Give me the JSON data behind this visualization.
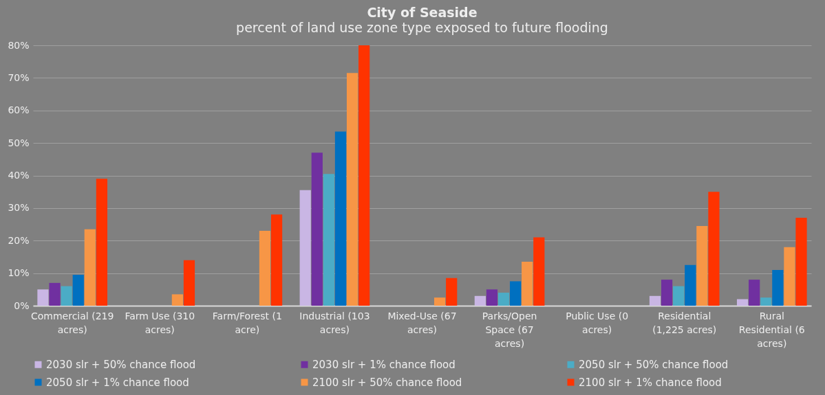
{
  "chart_data": {
    "type": "bar",
    "title": "City of Seaside",
    "subtitle": "percent of land use zone type exposed to future flooding",
    "categories": [
      "Commercial (219 acres)",
      "Farm Use (310 acres)",
      "Farm/Forest (1 acre)",
      "Industrial (103 acres)",
      "Mixed-Use (67 acres)",
      "Parks/Open Space (67 acres)",
      "Public Use (0 acres)",
      "Residential (1,225 acres)",
      "Rural Residential (6 acres)"
    ],
    "series": [
      {
        "name": "2030 slr + 50% chance flood",
        "color": "#c9b6e4",
        "values": [
          5,
          0,
          0,
          35.5,
          0,
          3,
          0,
          3,
          2
        ]
      },
      {
        "name": "2030 slr + 1% chance flood",
        "color": "#7030a0",
        "values": [
          7,
          0,
          0,
          47,
          0,
          5,
          0,
          8,
          8
        ]
      },
      {
        "name": "2050 slr + 50% chance flood",
        "color": "#4bacc6",
        "values": [
          6,
          0,
          0,
          40.5,
          0,
          4,
          0,
          6,
          2.5
        ]
      },
      {
        "name": "2050 slr + 1% chance flood",
        "color": "#0070c0",
        "values": [
          9.5,
          0,
          0,
          53.5,
          0,
          7.5,
          0,
          12.5,
          11
        ]
      },
      {
        "name": "2100 slr + 50% chance flood",
        "color": "#f79646",
        "values": [
          23.5,
          3.5,
          23,
          71.5,
          2.5,
          13.5,
          0,
          24.5,
          18
        ]
      },
      {
        "name": "2100 slr + 1% chance flood",
        "color": "#ff3300",
        "values": [
          39,
          14,
          28,
          80,
          8.5,
          21,
          0,
          35,
          27
        ]
      }
    ],
    "ylim": [
      0,
      80
    ],
    "yticks": [
      {
        "value": 0,
        "label": "0%"
      },
      {
        "value": 10,
        "label": "10%"
      },
      {
        "value": 20,
        "label": "20%"
      },
      {
        "value": 30,
        "label": "30%"
      },
      {
        "value": 40,
        "label": "40%"
      },
      {
        "value": 50,
        "label": "50%"
      },
      {
        "value": 60,
        "label": "60%"
      },
      {
        "value": 70,
        "label": "70%"
      },
      {
        "value": 80,
        "label": "80%"
      }
    ],
    "grid": "y",
    "legend": "bottom"
  }
}
